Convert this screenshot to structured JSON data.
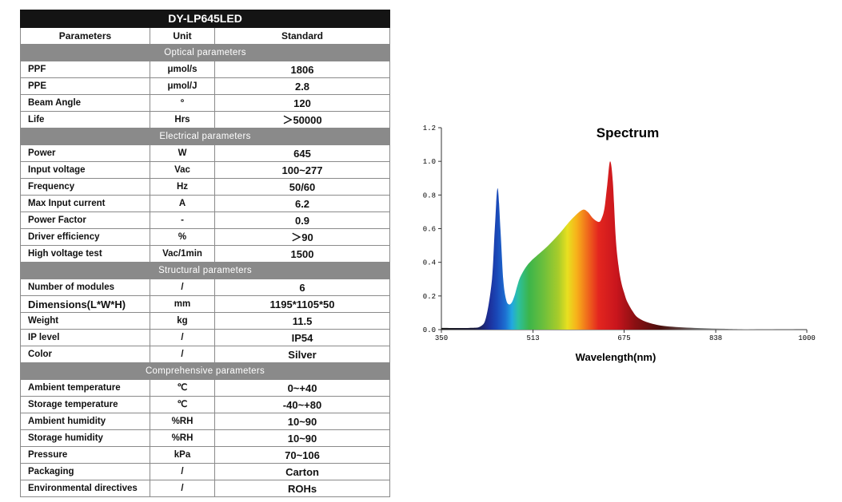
{
  "table": {
    "title": "DY-LP645LED",
    "headers": [
      "Parameters",
      "Unit",
      "Standard"
    ],
    "sections": [
      {
        "name": "Optical parameters",
        "rows": [
          {
            "parameter": "PPF",
            "unit": "μmol/s",
            "standard": "1806"
          },
          {
            "parameter": "PPE",
            "unit": "μmol/J",
            "standard": "2.8"
          },
          {
            "parameter": "Beam Angle",
            "unit": "º",
            "standard": "120"
          },
          {
            "parameter": "Life",
            "unit": "Hrs",
            "standard": "＞50000"
          }
        ]
      },
      {
        "name": "Electrical parameters",
        "rows": [
          {
            "parameter": "Power",
            "unit": "W",
            "standard": "645"
          },
          {
            "parameter": "Input voltage",
            "unit": "Vac",
            "standard": "100~277"
          },
          {
            "parameter": "Frequency",
            "unit": "Hz",
            "standard": "50/60"
          },
          {
            "parameter": "Max Input current",
            "unit": "A",
            "standard": "6.2"
          },
          {
            "parameter": "Power Factor",
            "unit": "-",
            "standard": "0.9"
          },
          {
            "parameter": "Driver efficiency",
            "unit": "%",
            "standard": "＞90"
          },
          {
            "parameter": "High voltage test",
            "unit": "Vac/1min",
            "standard": "1500"
          }
        ]
      },
      {
        "name": "Structural parameters",
        "rows": [
          {
            "parameter": "Number of modules",
            "unit": "/",
            "standard": "6"
          },
          {
            "parameter": "Dimensions(L*W*H)",
            "unit": "mm",
            "standard": "1195*1105*50"
          },
          {
            "parameter": "Weight",
            "unit": "kg",
            "standard": "11.5"
          },
          {
            "parameter": "IP level",
            "unit": "/",
            "standard": "IP54"
          },
          {
            "parameter": "Color",
            "unit": "/",
            "standard": "Silver"
          }
        ]
      },
      {
        "name": "Comprehensive parameters",
        "rows": [
          {
            "parameter": "Ambient temperature",
            "unit": "℃",
            "standard": "0~+40"
          },
          {
            "parameter": "Storage temperature",
            "unit": "℃",
            "standard": "-40~+80"
          },
          {
            "parameter": "Ambient humidity",
            "unit": "%RH",
            "standard": "10~90"
          },
          {
            "parameter": "Storage humidity",
            "unit": "%RH",
            "standard": "10~90"
          },
          {
            "parameter": "Pressure",
            "unit": "kPa",
            "standard": "70~106"
          },
          {
            "parameter": "Packaging",
            "unit": "/",
            "standard": "Carton"
          },
          {
            "parameter": "Environmental directives",
            "unit": "/",
            "standard": "ROHs"
          }
        ]
      }
    ]
  },
  "colors": {
    "title_bg": "#141414",
    "section_bg": "#8a8a8a",
    "border": "#8a8a8a"
  },
  "chart_data": {
    "type": "area",
    "title": "Spectrum",
    "xlabel": "Wavelength(nm)",
    "ylabel": "",
    "xlim": [
      350,
      1000
    ],
    "ylim": [
      0,
      1.2
    ],
    "xticks": [
      350,
      513,
      675,
      838,
      1000
    ],
    "yticks": [
      0.0,
      0.2,
      0.4,
      0.6,
      0.8,
      1.0,
      1.2
    ],
    "ytick_labels": [
      "0.0",
      "0.2",
      "0.4",
      "0.6",
      "0.8",
      "1.0",
      "1.2"
    ],
    "grid": false,
    "x": [
      350,
      400,
      420,
      430,
      440,
      445,
      450,
      455,
      460,
      465,
      470,
      475,
      480,
      485,
      490,
      500,
      510,
      520,
      540,
      560,
      580,
      600,
      610,
      620,
      630,
      635,
      640,
      645,
      650,
      655,
      660,
      665,
      670,
      675,
      680,
      690,
      700,
      720,
      750,
      800,
      850,
      900,
      1000
    ],
    "y": [
      0.01,
      0.01,
      0.02,
      0.08,
      0.3,
      0.6,
      0.84,
      0.6,
      0.3,
      0.18,
      0.15,
      0.16,
      0.2,
      0.26,
      0.31,
      0.37,
      0.41,
      0.44,
      0.5,
      0.57,
      0.65,
      0.71,
      0.7,
      0.66,
      0.64,
      0.66,
      0.72,
      0.86,
      1.0,
      0.88,
      0.55,
      0.38,
      0.28,
      0.22,
      0.17,
      0.11,
      0.07,
      0.04,
      0.02,
      0.01,
      0.005,
      0.002,
      0.0
    ]
  }
}
